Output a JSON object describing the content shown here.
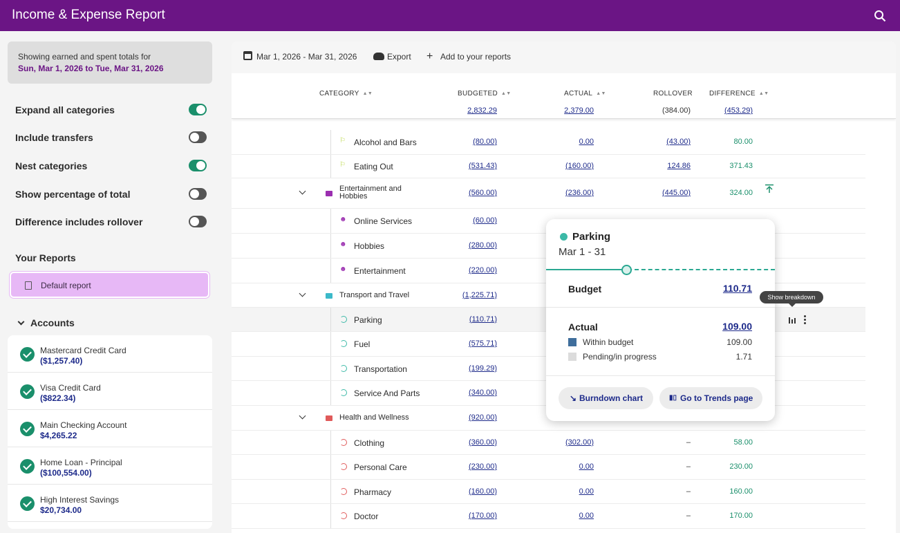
{
  "app": {
    "title": "Income & Expense Report"
  },
  "sidebar": {
    "range_line1": "Showing earned and spent totals for",
    "range_line2": "Sun, Mar 1, 2026 to Tue, Mar 31, 2026",
    "options": [
      {
        "label": "Expand all categories",
        "on": true
      },
      {
        "label": "Include transfers",
        "on": false
      },
      {
        "label": "Nest categories",
        "on": true
      },
      {
        "label": "Show percentage of total",
        "on": false
      },
      {
        "label": "Difference includes rollover",
        "on": false
      }
    ],
    "your_reports_title": "Your Reports",
    "report_label": "Default report",
    "accounts_title": "Accounts",
    "accounts": [
      {
        "name": "Mastercard Credit Card",
        "balance": "($1,257.40)"
      },
      {
        "name": "Visa Credit Card",
        "balance": "($822.34)"
      },
      {
        "name": "Main Checking Account",
        "balance": "$4,265.22"
      },
      {
        "name": "Home Loan - Principal",
        "balance": "($100,554.00)"
      },
      {
        "name": "High Interest Savings",
        "balance": "$20,734.00"
      }
    ]
  },
  "toolbar": {
    "date_range": "Mar 1, 2026 - Mar 31, 2026",
    "export": "Export",
    "add_reports": "Add to your reports"
  },
  "table": {
    "headers": {
      "category": "CATEGORY",
      "budgeted": "BUDGETED",
      "actual": "ACTUAL",
      "rollover": "ROLLOVER",
      "difference": "DIFFERENCE"
    },
    "totals": {
      "budgeted": "2,832.29",
      "actual": "2,379.00",
      "rollover": "(384.00)",
      "difference": "(453.29)"
    },
    "rows": [
      {
        "name": "Alcohol and Bars",
        "budgeted": "(80.00)",
        "actual": "0.00",
        "rollover": "(43.00)",
        "difference": "80.00"
      },
      {
        "name": "Eating Out",
        "budgeted": "(531.43)",
        "actual": "(160.00)",
        "rollover": "124.86",
        "difference": "371.43"
      },
      {
        "name": "Entertainment and Hobbies",
        "budgeted": "(560.00)",
        "actual": "(236.00)",
        "rollover": "(445.00)",
        "difference": "324.00"
      },
      {
        "name": "Online Services",
        "budgeted": "(60.00)"
      },
      {
        "name": "Hobbies",
        "budgeted": "(280.00)"
      },
      {
        "name": "Entertainment",
        "budgeted": "(220.00)"
      },
      {
        "name": "Transport and Travel",
        "budgeted": "(1,225.71)"
      },
      {
        "name": "Parking",
        "budgeted": "(110.71)"
      },
      {
        "name": "Fuel",
        "budgeted": "(575.71)"
      },
      {
        "name": "Transportation",
        "budgeted": "(199.29)"
      },
      {
        "name": "Service And Parts",
        "budgeted": "(340.00)"
      },
      {
        "name": "Health and Wellness",
        "budgeted": "(920.00)"
      },
      {
        "name": "Clothing",
        "budgeted": "(360.00)",
        "actual": "(302.00)",
        "rollover": "–",
        "difference": "58.00"
      },
      {
        "name": "Personal Care",
        "budgeted": "(230.00)",
        "actual": "0.00",
        "rollover": "–",
        "difference": "230.00"
      },
      {
        "name": "Pharmacy",
        "budgeted": "(160.00)",
        "actual": "0.00",
        "rollover": "–",
        "difference": "160.00"
      },
      {
        "name": "Doctor",
        "budgeted": "(170.00)",
        "actual": "0.00",
        "rollover": "–",
        "difference": "170.00"
      }
    ]
  },
  "popover": {
    "title": "Parking",
    "dates": "Mar 1 - 31",
    "budget_label": "Budget",
    "budget_value": "110.71",
    "actual_label": "Actual",
    "actual_value": "109.00",
    "legend": [
      {
        "label": "Within budget",
        "value": "109.00",
        "color": "#3f6e9c"
      },
      {
        "label": "Pending/in progress",
        "value": "1.71",
        "color": "#dcdcdc"
      }
    ],
    "burndown_button": "Burndown chart",
    "trends_button": "Go to Trends page"
  },
  "tooltip": {
    "text": "Show breakdown"
  },
  "colors": {
    "brand": "#6b1585",
    "accent_green": "#1a8f6b",
    "link_blue": "#1d2a8a"
  }
}
